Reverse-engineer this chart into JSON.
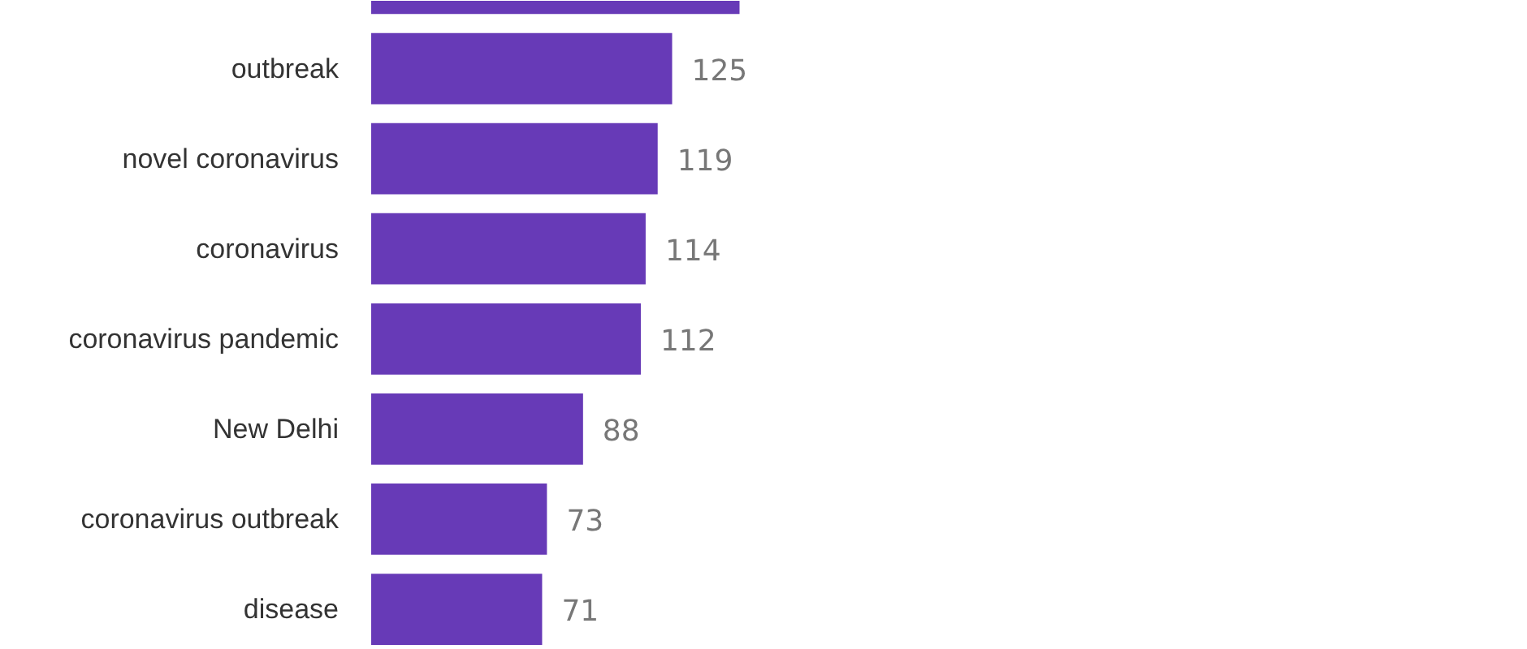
{
  "chart_data": {
    "type": "bar",
    "orientation": "horizontal",
    "categories": [
      null,
      "outbreak",
      "novel coronavirus",
      "coronavirus",
      "coronavirus pandemic",
      "New Delhi",
      "coronavirus outbreak",
      "disease"
    ],
    "values": [
      153,
      125,
      119,
      114,
      112,
      88,
      73,
      71
    ],
    "value_labels": [
      null,
      "125",
      "119",
      "114",
      "112",
      "88",
      "73",
      "71"
    ],
    "color": "#673ab7"
  }
}
